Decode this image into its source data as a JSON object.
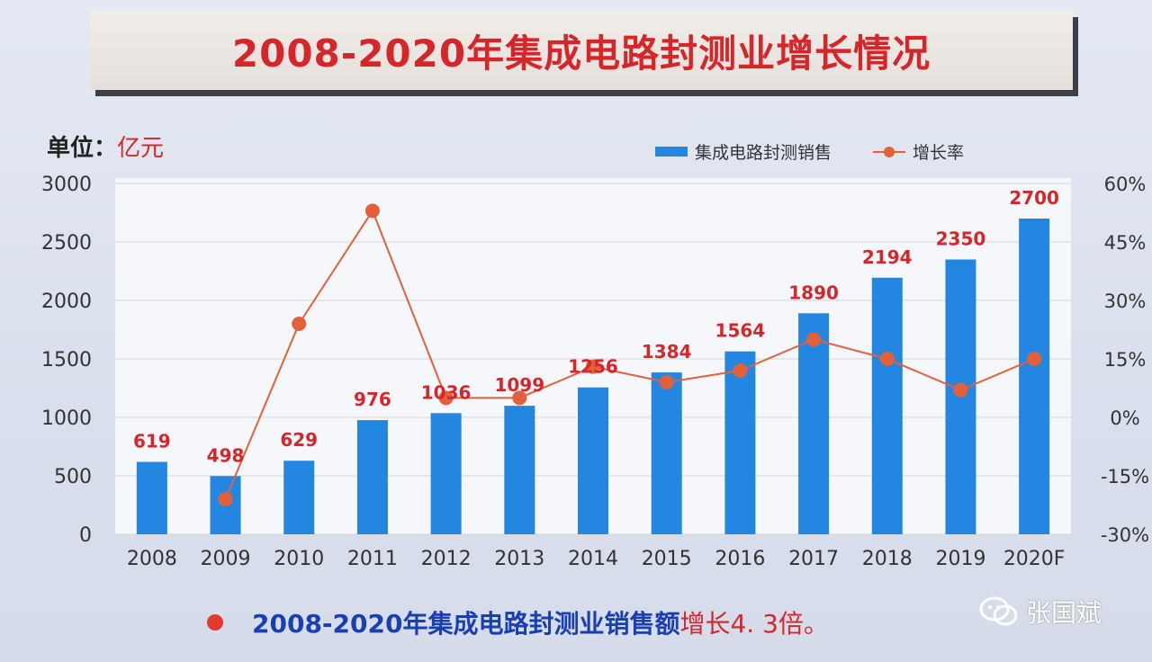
{
  "title": "2008-2020年集成电路封测业增长情况",
  "unit": {
    "label": "单位：",
    "value": "亿元"
  },
  "legend": {
    "bar": "集成电路封测销售",
    "line": "增长率"
  },
  "footer": {
    "blue": "2008-2020年集成电路封测业销售额",
    "red": "增长4. 3倍。"
  },
  "watermark": {
    "text": "张国斌",
    "icon": "wechat-icon"
  },
  "colors": {
    "bar": "#2386e0",
    "line": "#e2603a",
    "label": "#d6262a"
  },
  "chart_data": {
    "type": "bar",
    "categories": [
      "2008",
      "2009",
      "2010",
      "2011",
      "2012",
      "2013",
      "2014",
      "2015",
      "2016",
      "2017",
      "2018",
      "2019",
      "2020F"
    ],
    "series": [
      {
        "name": "集成电路封测销售",
        "type": "bar",
        "axis": "left",
        "values": [
          619,
          498,
          629,
          976,
          1036,
          1099,
          1256,
          1384,
          1564,
          1890,
          2194,
          2350,
          2700
        ]
      },
      {
        "name": "增长率",
        "type": "line",
        "axis": "right",
        "values": [
          null,
          -21,
          24,
          53,
          5,
          5,
          13,
          9,
          12,
          20,
          15,
          7,
          15
        ]
      }
    ],
    "y_left": {
      "min": 0,
      "max": 3000,
      "ticks": [
        "0",
        "500",
        "1000",
        "1500",
        "2000",
        "2500",
        "3000"
      ]
    },
    "y_right": {
      "min": -30,
      "max": 60,
      "ticks": [
        "-30%",
        "-15%",
        "0%",
        "15%",
        "30%",
        "45%",
        "60%"
      ]
    },
    "data_labels": [
      "619",
      "498",
      "629",
      "976",
      "1036",
      "1099",
      "1256",
      "1384",
      "1564",
      "1890",
      "2194",
      "2350",
      "2700"
    ],
    "grid": true
  }
}
